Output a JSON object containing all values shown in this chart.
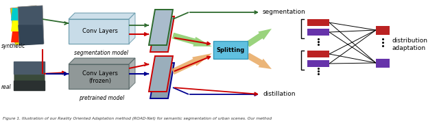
{
  "caption": "Figure 1. Illustration of our Reality Oriented Adaptation method (ROAD-Net) for semantic segmentation of urban scenes. Our method",
  "synthetic_label": "synthetic",
  "real_label": "real",
  "seg_model_label": "segmentation model",
  "pretrained_model_label": "pretrained model",
  "conv_seg_label": "Conv Layers",
  "conv_pretrained_label1": "Conv Layers",
  "conv_pretrained_label2": "(frozen)",
  "splitting_label": "Splitting",
  "segmentation_label": "segmentation",
  "distillation_label": "distillation",
  "distribution_label": "distribution\nadaptation",
  "box_seg_color": "#c8dce8",
  "box_seg_edge": "#6699aa",
  "box_pretrained_color": "#909898",
  "box_pretrained_edge": "#556666",
  "splitting_color": "#60c0e0",
  "splitting_edge": "#3399bb",
  "arrow_green_color": "#2d6a2d",
  "arrow_red_color": "#cc0000",
  "arrow_blue_color": "#000090",
  "arrow_lightgreen": "#88cc44",
  "arrow_orange": "#e09040",
  "red_bar_color": "#bb2222",
  "purple_bar_color": "#6633aa",
  "fm_top_color": "#aabccc",
  "fm_bot_color": "#8aaabb",
  "fm_edge_green": "#2d6a2d",
  "fm_edge_red": "#cc0000",
  "fm_edge_blue": "#000090"
}
